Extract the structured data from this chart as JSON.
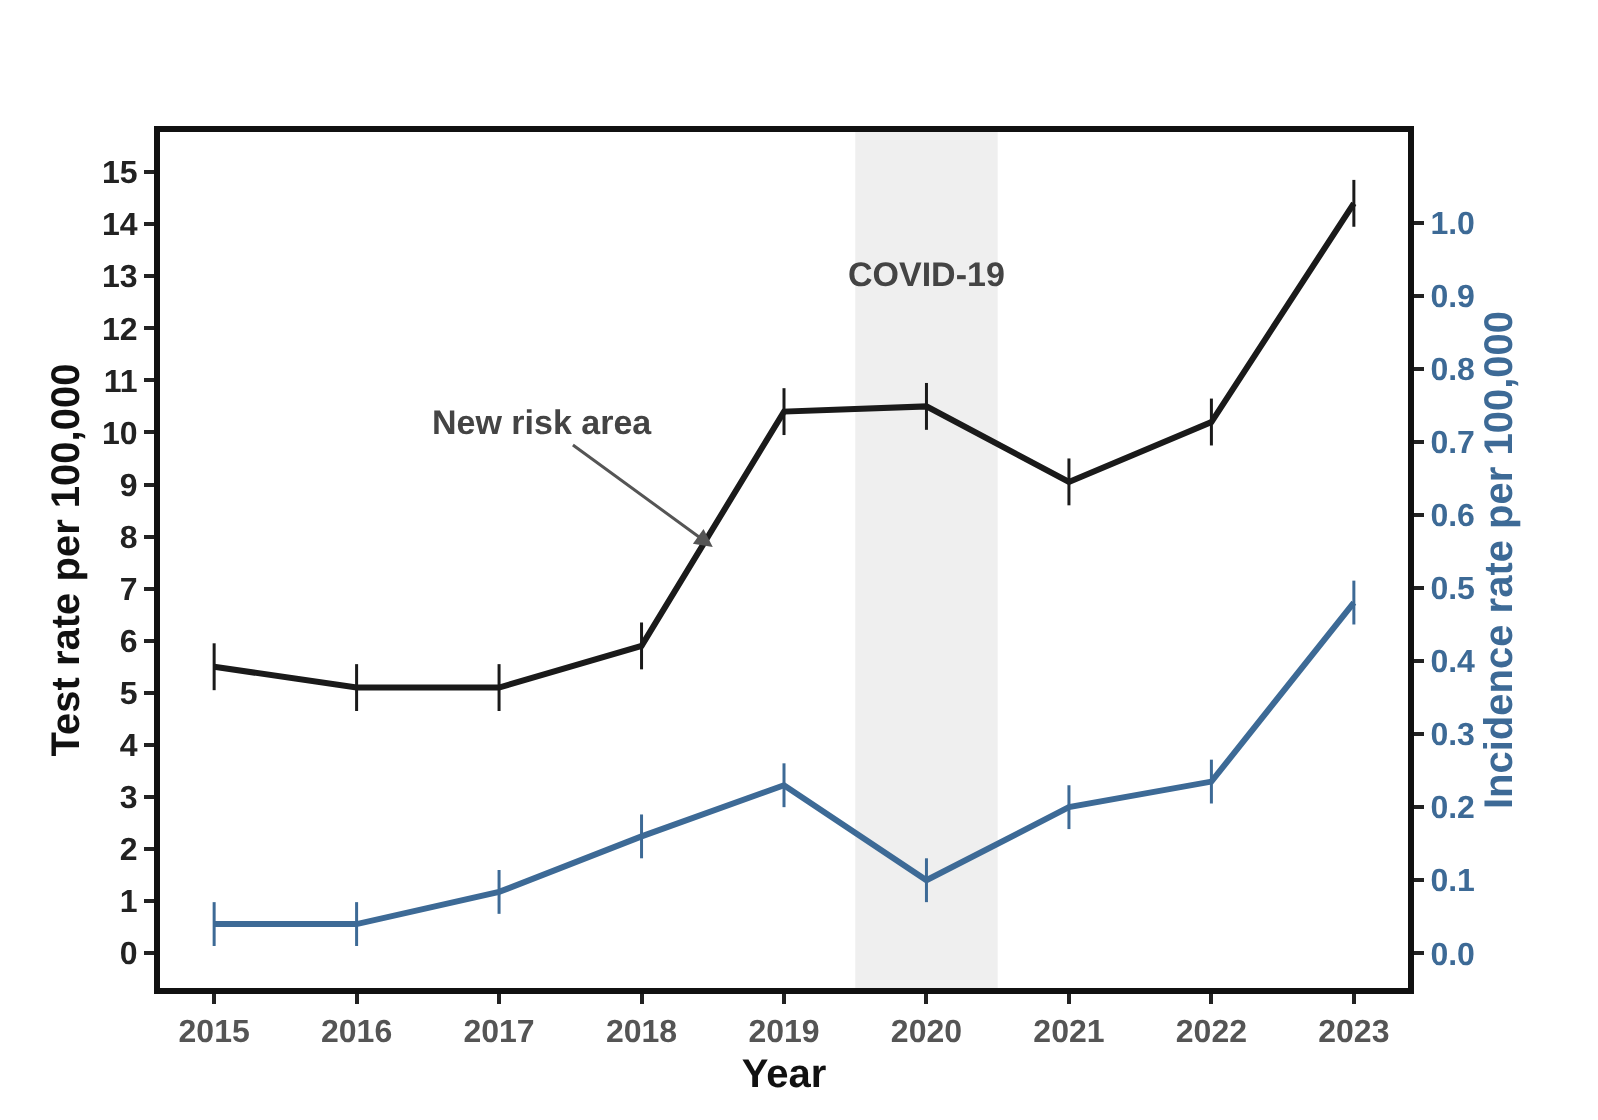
{
  "chart_data": {
    "type": "line",
    "xlabel": "Year",
    "ylabel": "Test rate per 100,000",
    "y2label": "Incidence rate per 100,000",
    "x": [
      2015,
      2016,
      2017,
      2018,
      2019,
      2020,
      2021,
      2022,
      2023
    ],
    "series": [
      {
        "color": "#1a1a1a",
        "values": [
          5.5,
          5.1,
          5.1,
          5.9,
          10.4,
          10.5,
          9.05,
          10.2,
          14.4
        ],
        "errors": [
          0.45,
          0.45,
          0.45,
          0.45,
          0.45,
          0.45,
          0.45,
          0.45,
          0.45
        ]
      },
      {
        "color": "#3d6a96",
        "axis": "y2",
        "values": [
          0.04,
          0.04,
          0.084,
          0.16,
          0.23,
          0.1,
          0.2,
          0.235,
          0.48
        ],
        "errors": [
          0.03,
          0.03,
          0.03,
          0.03,
          0.03,
          0.03,
          0.03,
          0.03,
          0.03
        ]
      }
    ],
    "xlim": [
      2014.62,
      2023.38
    ],
    "xticks": [
      2015,
      2016,
      2017,
      2018,
      2019,
      2020,
      2021,
      2022,
      2023
    ],
    "ylim": [
      -0.67,
      15.77
    ],
    "yticks": [
      0,
      1,
      2,
      3,
      4,
      5,
      6,
      7,
      8,
      9,
      10,
      11,
      12,
      13,
      14,
      15
    ],
    "y2lim": [
      -0.0475,
      1.124
    ],
    "y2ticks": [
      {
        "value": 0,
        "label": "0.0"
      },
      {
        "value": 0.1,
        "label": "0.1"
      },
      {
        "value": 0.2,
        "label": "0.2"
      },
      {
        "value": 0.3,
        "label": "0.3"
      },
      {
        "value": 0.4,
        "label": "0.4"
      },
      {
        "value": 0.5,
        "label": "0.5"
      },
      {
        "value": 0.6,
        "label": "0.6"
      },
      {
        "value": 0.7,
        "label": "0.7"
      },
      {
        "value": 0.8,
        "label": "0.8"
      },
      {
        "value": 0.9,
        "label": "0.9"
      },
      {
        "value": 1.0,
        "label": "1.0"
      }
    ],
    "bands": [
      {
        "axis": "x",
        "from": 2019.5,
        "to": 2020.5,
        "label": "COVID-19",
        "color": "#efefef"
      }
    ],
    "annotations": [
      {
        "text": "New risk area",
        "x": 2018.5,
        "y": 7.8
      }
    ],
    "marker": "none",
    "line_style": "solid",
    "grid": false
  }
}
